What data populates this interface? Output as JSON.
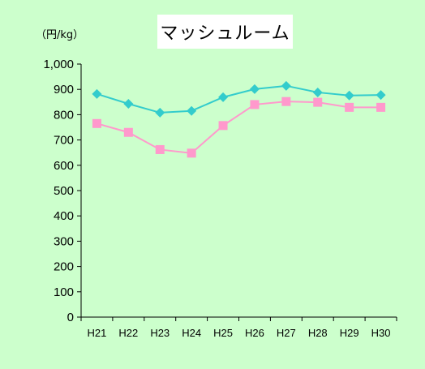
{
  "chart_data": {
    "type": "line",
    "title": "マッシュルーム",
    "unit_label": "（円/kg）",
    "xlabel": "",
    "ylabel": "",
    "categories": [
      "H21",
      "H22",
      "H23",
      "H24",
      "H25",
      "H26",
      "H27",
      "H28",
      "H29",
      "H30"
    ],
    "ylim": [
      0,
      1000
    ],
    "yticks": [
      0,
      100,
      200,
      300,
      400,
      500,
      600,
      700,
      800,
      900,
      1000
    ],
    "ytick_labels": [
      "0",
      "100",
      "200",
      "300",
      "400",
      "500",
      "600",
      "700",
      "800",
      "900",
      "1,000"
    ],
    "grid": false,
    "legend": "none",
    "series": [
      {
        "marker": "diamond",
        "color": "#33cccc",
        "values": [
          882,
          843,
          808,
          815,
          869,
          901,
          914,
          888,
          876,
          878
        ]
      },
      {
        "marker": "square",
        "color": "#ff99cc",
        "values": [
          765,
          730,
          662,
          648,
          757,
          840,
          852,
          849,
          829,
          829
        ]
      }
    ]
  }
}
